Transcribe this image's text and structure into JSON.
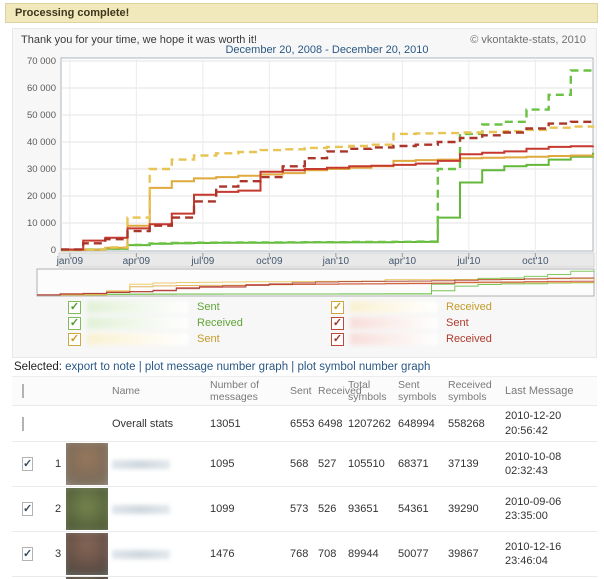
{
  "alert": {
    "title": "Processing complete!"
  },
  "header": {
    "thanks": "Thank you for your time, we hope it was worth it!",
    "copyright": "© vkontakte-stats, 2010"
  },
  "chart_data": {
    "type": "line",
    "title": "December 20, 2008 - December 20, 2010",
    "xlabel": "",
    "ylabel": "",
    "ylim": [
      0,
      70000
    ],
    "grid": true,
    "x_unit": "months since 2008-12-20",
    "x_range_months": [
      0,
      24
    ],
    "x_tick_labels": [
      "jan'09",
      "apr'09",
      "jul'09",
      "oct'09",
      "jan'10",
      "apr'10",
      "jul'10",
      "oct'10"
    ],
    "x_tick_positions_months": [
      0.4,
      3.4,
      6.4,
      9.4,
      12.4,
      15.4,
      18.4,
      21.4
    ],
    "y_ticks": [
      {
        "value": 0,
        "label": "0"
      },
      {
        "value": 10000,
        "label": "10 000"
      },
      {
        "value": 20000,
        "label": "20 000"
      },
      {
        "value": 30000,
        "label": "30 000"
      },
      {
        "value": 40000,
        "label": "40 000"
      },
      {
        "value": 50000,
        "label": "50 000"
      },
      {
        "value": 60000,
        "label": "60 000"
      },
      {
        "value": 70000,
        "label": "70 000"
      }
    ],
    "has_overview_strip": true,
    "series": [
      {
        "name": "friend-green Sent",
        "color": "#63B83B",
        "dashed": false,
        "values": [
          0,
          200,
          500,
          1800,
          2300,
          2500,
          2600,
          2650,
          2700,
          2700,
          2750,
          2800,
          2800,
          2850,
          2900,
          2950,
          3000,
          12000,
          25000,
          29500,
          31000,
          31500,
          33500,
          34500,
          36000
        ]
      },
      {
        "name": "friend-green Received",
        "color": "#6CC244",
        "dashed": true,
        "values": [
          0,
          200,
          500,
          1900,
          2400,
          2600,
          2700,
          2750,
          2800,
          2800,
          2850,
          2900,
          2900,
          2950,
          3000,
          3050,
          3100,
          30000,
          43000,
          46500,
          47500,
          52000,
          57500,
          66500,
          66700
        ]
      },
      {
        "name": "friend-yellow Sent",
        "color": "#DFA93F",
        "dashed": false,
        "values": [
          0,
          100,
          800,
          9000,
          23000,
          25500,
          26500,
          27000,
          27500,
          28000,
          28500,
          29500,
          30000,
          30500,
          31000,
          33000,
          33300,
          33500,
          34000,
          34200,
          34300,
          34500,
          34800,
          35000,
          35200
        ]
      },
      {
        "name": "friend-yellow Received",
        "color": "#E7C453",
        "dashed": true,
        "values": [
          0,
          100,
          1000,
          12000,
          30000,
          33500,
          35000,
          35800,
          36300,
          37000,
          37300,
          37800,
          38200,
          38500,
          39000,
          43000,
          43200,
          43300,
          43500,
          43700,
          44000,
          44500,
          45300,
          45700,
          46000
        ]
      },
      {
        "name": "friend-red Sent",
        "color": "#C5392F",
        "dashed": false,
        "values": [
          200,
          3500,
          4500,
          8000,
          9500,
          13500,
          20500,
          21500,
          22000,
          29000,
          29500,
          30000,
          30500,
          31000,
          31200,
          31500,
          32000,
          33000,
          35500,
          36000,
          36500,
          37500,
          38200,
          38400,
          38600
        ]
      },
      {
        "name": "friend-red Received",
        "color": "#A9352B",
        "dashed": true,
        "values": [
          200,
          2500,
          4000,
          7000,
          9000,
          12000,
          18000,
          23500,
          25500,
          27000,
          31000,
          34000,
          36500,
          37500,
          38000,
          38500,
          39000,
          40000,
          41500,
          42500,
          43500,
          45000,
          46800,
          47500,
          47800
        ]
      }
    ]
  },
  "legend": {
    "left": [
      {
        "color_key": "green",
        "label": "Sent",
        "checked": true
      },
      {
        "color_key": "green",
        "label": "Received",
        "checked": true
      },
      {
        "color_key": "yellow",
        "label": "Sent",
        "checked": true
      }
    ],
    "right": [
      {
        "color_key": "yellow",
        "label": "Received",
        "checked": true
      },
      {
        "color_key": "red",
        "label": "Sent",
        "checked": true
      },
      {
        "color_key": "red",
        "label": "Received",
        "checked": true
      }
    ],
    "colors": {
      "green": {
        "box": "#82BC5A",
        "check": "#4E9A2E",
        "text": "#61A437",
        "tint": "#e2f1d7"
      },
      "yellow": {
        "box": "#CFA83D",
        "check": "#C79B25",
        "text": "#C49B2A",
        "tint": "#faf1d2"
      },
      "red": {
        "box": "#BC4A3C",
        "check": "#A33227",
        "text": "#AE3B2E",
        "tint": "#f7ded9"
      }
    }
  },
  "selected": {
    "label": "Selected:",
    "links": [
      "export to note",
      "plot message number graph",
      "plot symbol number graph"
    ]
  },
  "table": {
    "headers": {
      "name": "Name",
      "messages": "Number of messages",
      "sent": "Sent",
      "received": "Received",
      "total_symbols": "Total symbols",
      "sent_symbols": "Sent symbols",
      "received_symbols": "Received symbols",
      "last_message": "Last Message"
    },
    "rows": [
      {
        "num": "",
        "checked": false,
        "avatar": null,
        "name": "Overall stats",
        "name_blurred": false,
        "messages": "13051",
        "sent": "6553",
        "received": "6498",
        "total_symbols": "1207262",
        "sent_symbols": "648994",
        "received_symbols": "558268",
        "last_message": "2010-12-20 20:56:42"
      },
      {
        "num": "1",
        "checked": true,
        "avatar": "brown",
        "name": "",
        "name_blurred": true,
        "messages": "1095",
        "sent": "568",
        "received": "527",
        "total_symbols": "105510",
        "sent_symbols": "68371",
        "received_symbols": "37139",
        "last_message": "2010-10-08 02:32:43"
      },
      {
        "num": "2",
        "checked": true,
        "avatar": "olive",
        "name": "",
        "name_blurred": true,
        "messages": "1099",
        "sent": "573",
        "received": "526",
        "total_symbols": "93651",
        "sent_symbols": "54361",
        "received_symbols": "39290",
        "last_message": "2010-09-06 23:35:00"
      },
      {
        "num": "3",
        "checked": true,
        "avatar": "darkbrown",
        "name": "",
        "name_blurred": true,
        "messages": "1476",
        "sent": "768",
        "received": "708",
        "total_symbols": "89944",
        "sent_symbols": "50077",
        "received_symbols": "39867",
        "last_message": "2010-12-16 23:46:04"
      }
    ],
    "partial_row": {
      "avatar": "dark"
    }
  }
}
